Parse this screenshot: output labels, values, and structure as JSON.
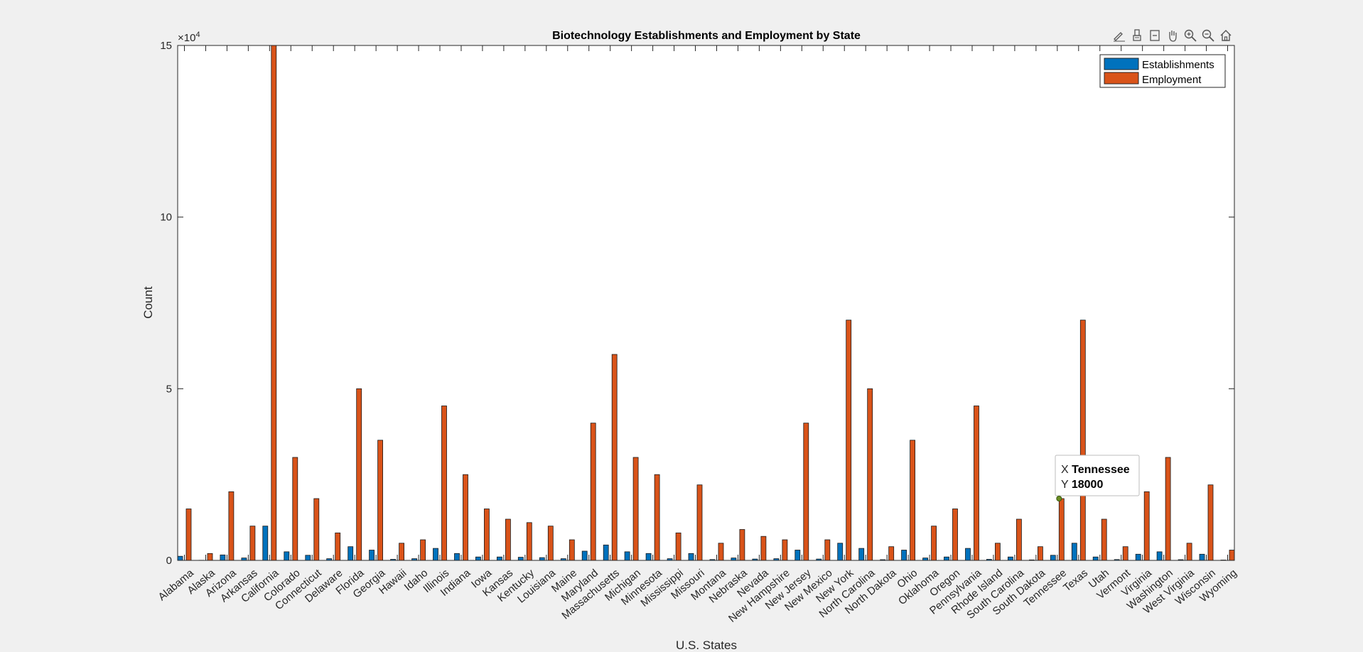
{
  "toolbar": {
    "icons": [
      "edit-brush-icon",
      "data-tips-icon",
      "export-icon",
      "pan-icon",
      "zoom-in-icon",
      "zoom-out-icon",
      "home-icon"
    ]
  },
  "chart_data": {
    "type": "bar",
    "title": "Biotechnology Establishments and Employment by State",
    "xlabel": "U.S. States",
    "ylabel": "Count",
    "y_exponent_label": "×10",
    "y_exponent_power": "4",
    "ylim": [
      0,
      150000
    ],
    "yticks": [
      0,
      50000,
      100000,
      150000
    ],
    "ytick_labels": [
      "0",
      "5",
      "10",
      "15"
    ],
    "categories": [
      "Alabama",
      "Alaska",
      "Arizona",
      "Arkansas",
      "California",
      "Colorado",
      "Connecticut",
      "Delaware",
      "Florida",
      "Georgia",
      "Hawaii",
      "Idaho",
      "Illinois",
      "Indiana",
      "Iowa",
      "Kansas",
      "Kentucky",
      "Louisiana",
      "Maine",
      "Maryland",
      "Massachusetts",
      "Michigan",
      "Minnesota",
      "Mississippi",
      "Missouri",
      "Montana",
      "Nebraska",
      "Nevada",
      "New Hampshire",
      "New Jersey",
      "New Mexico",
      "New York",
      "North Carolina",
      "North Dakota",
      "Ohio",
      "Oklahoma",
      "Oregon",
      "Pennsylvania",
      "Rhode Island",
      "South Carolina",
      "South Dakota",
      "Tennessee",
      "Texas",
      "Utah",
      "Vermont",
      "Virginia",
      "Washington",
      "West Virginia",
      "Wisconsin",
      "Wyoming"
    ],
    "series": [
      {
        "name": "Establishments",
        "color": "#0072BD",
        "values": [
          1200,
          50,
          1600,
          700,
          10000,
          2500,
          1500,
          500,
          4000,
          3000,
          300,
          500,
          3500,
          2000,
          1000,
          1000,
          900,
          800,
          500,
          2700,
          4500,
          2500,
          2000,
          500,
          2000,
          250,
          700,
          400,
          500,
          3000,
          400,
          5000,
          3500,
          200,
          3000,
          700,
          1000,
          3500,
          300,
          1000,
          150,
          1500,
          5000,
          1000,
          250,
          1800,
          2500,
          200,
          1800,
          100
        ]
      },
      {
        "name": "Employment",
        "color": "#D95319",
        "values": [
          15000,
          2000,
          20000,
          10000,
          150000,
          30000,
          18000,
          8000,
          50000,
          35000,
          5000,
          6000,
          45000,
          25000,
          15000,
          12000,
          11000,
          10000,
          6000,
          40000,
          60000,
          30000,
          25000,
          8000,
          22000,
          5000,
          9000,
          7000,
          6000,
          40000,
          6000,
          70000,
          50000,
          4000,
          35000,
          10000,
          15000,
          45000,
          5000,
          12000,
          4000,
          18000,
          70000,
          12000,
          4000,
          20000,
          30000,
          5000,
          22000,
          3000
        ]
      }
    ],
    "legend_placement": "top-right",
    "grid": false,
    "datatip": {
      "x_label": "X",
      "x_value": "Tennessee",
      "y_label": "Y",
      "y_value": "18000",
      "category": "Tennessee",
      "series": "Employment"
    }
  }
}
